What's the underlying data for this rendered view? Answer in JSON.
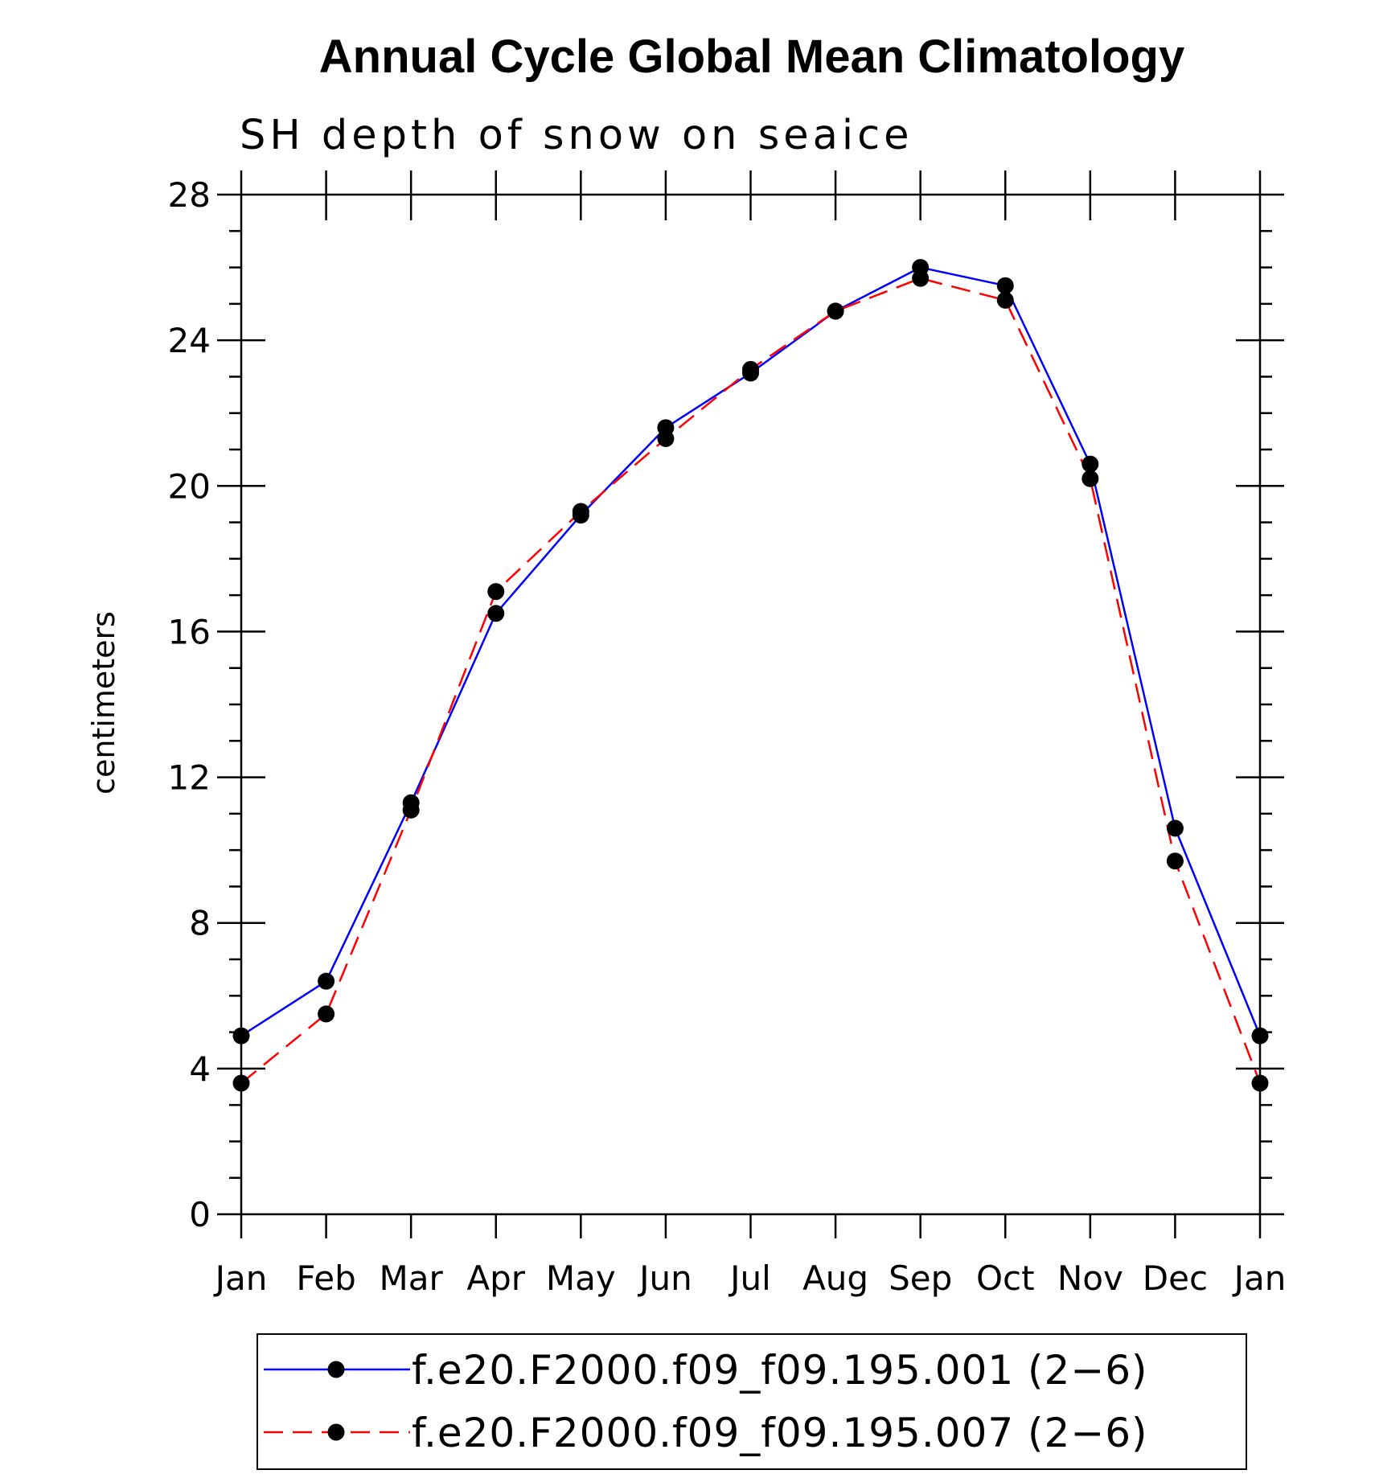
{
  "chart_data": {
    "type": "line",
    "title": "Annual Cycle Global Mean Climatology",
    "subtitle": "SH depth of snow on seaice",
    "xlabel": "",
    "ylabel": "centimeters",
    "categories": [
      "Jan",
      "Feb",
      "Mar",
      "Apr",
      "May",
      "Jun",
      "Jul",
      "Aug",
      "Sep",
      "Oct",
      "Nov",
      "Dec",
      "Jan"
    ],
    "ylim": [
      0,
      28
    ],
    "yticks": [
      0,
      4,
      8,
      12,
      16,
      20,
      24,
      28
    ],
    "yticks_labels": [
      "0",
      "4",
      "8",
      "12",
      "16",
      "20",
      "24",
      "28"
    ],
    "grid": false,
    "legend_position": "bottom",
    "series": [
      {
        "name": "f.e20.F2000.f09_f09.195.001 (2−6)",
        "color": "#0000ff",
        "line_style": "solid",
        "marker": "filled-circle",
        "values": [
          4.9,
          6.4,
          11.3,
          16.5,
          19.2,
          21.6,
          23.1,
          24.8,
          26.0,
          25.5,
          20.6,
          10.6,
          4.9
        ]
      },
      {
        "name": "f.e20.F2000.f09_f09.195.007 (2−6)",
        "color": "#ff0000",
        "line_style": "dashed",
        "marker": "filled-circle",
        "values": [
          3.6,
          5.5,
          11.1,
          17.1,
          19.3,
          21.3,
          23.2,
          24.8,
          25.7,
          25.1,
          20.2,
          9.7,
          3.6
        ]
      }
    ]
  },
  "colors": {
    "axis": "#000000",
    "marker": "#000000",
    "background": "#ffffff"
  }
}
